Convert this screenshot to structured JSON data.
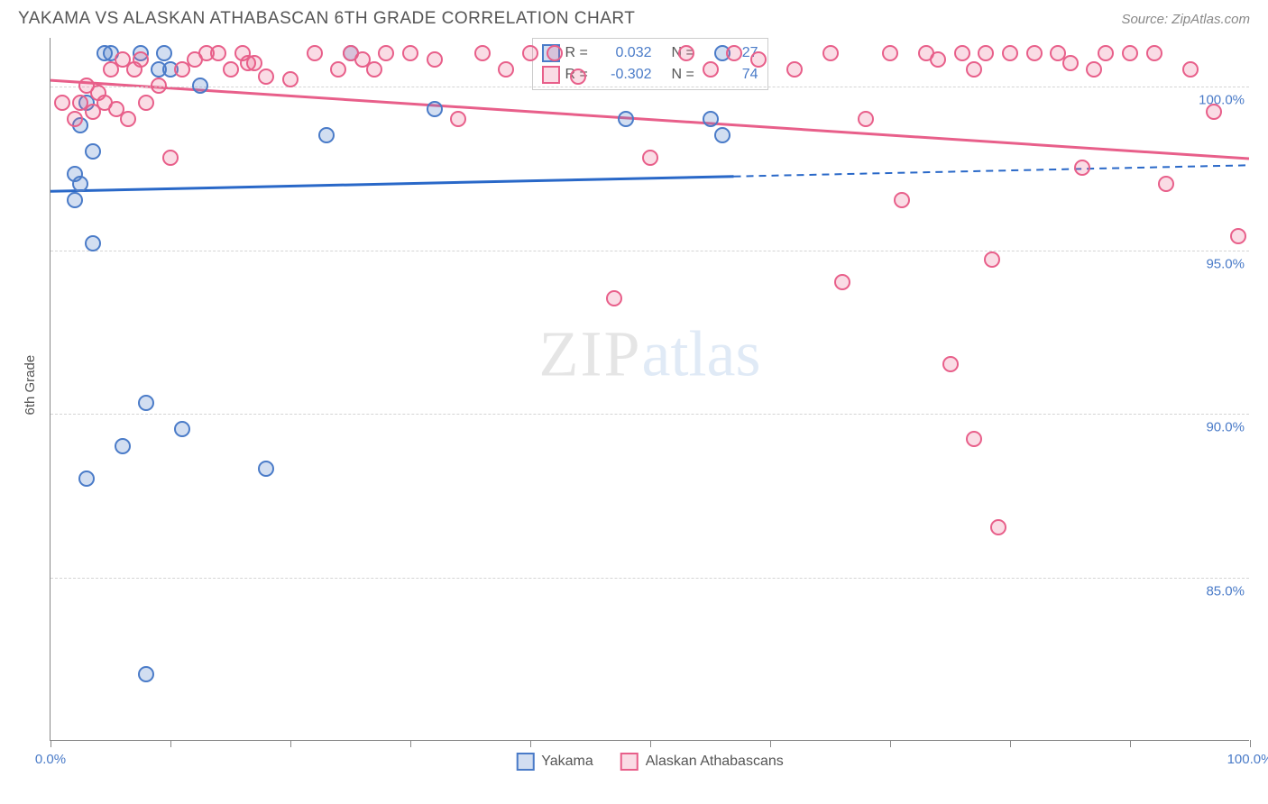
{
  "title": "YAKAMA VS ALASKAN ATHABASCAN 6TH GRADE CORRELATION CHART",
  "source": "Source: ZipAtlas.com",
  "ylabel": "6th Grade",
  "watermark_zip": "ZIP",
  "watermark_atlas": "atlas",
  "chart": {
    "type": "scatter",
    "xlim": [
      0,
      100
    ],
    "ylim": [
      80,
      101.5
    ],
    "xtick_positions": [
      0,
      10,
      20,
      30,
      40,
      50,
      60,
      70,
      80,
      90,
      100
    ],
    "xtick_labels": {
      "0": "0.0%",
      "100": "100.0%"
    },
    "xtick_label_color": "#4a7bc8",
    "ytick_positions": [
      85,
      90,
      95,
      100
    ],
    "ytick_labels": [
      "85.0%",
      "90.0%",
      "95.0%",
      "100.0%"
    ],
    "ytick_label_color": "#4a7bc8",
    "grid_color": "#d5d5d5",
    "background_color": "#ffffff",
    "marker_size": 18,
    "marker_border_width": 2,
    "marker_fill_opacity": 0.3,
    "series": [
      {
        "name": "Yakama",
        "color": "#4a7bc8",
        "fill": "rgba(74,123,200,0.25)",
        "r_value": "0.032",
        "n_value": "27",
        "trend": {
          "x1": 0,
          "y1": 96.8,
          "x2": 100,
          "y2": 97.6,
          "solid_until_x": 57,
          "line_color": "#2968c8",
          "line_width": 3
        },
        "points": [
          [
            2,
            97.3
          ],
          [
            2.5,
            97.0
          ],
          [
            2,
            96.5
          ],
          [
            2.5,
            98.8
          ],
          [
            3,
            99.5
          ],
          [
            3.5,
            98.0
          ],
          [
            4.5,
            101
          ],
          [
            5,
            101
          ],
          [
            7.5,
            101
          ],
          [
            9,
            100.5
          ],
          [
            9.5,
            101
          ],
          [
            10,
            100.5
          ],
          [
            3.5,
            95.2
          ],
          [
            3,
            88.0
          ],
          [
            6,
            89.0
          ],
          [
            8,
            90.3
          ],
          [
            8,
            82.0
          ],
          [
            11,
            89.5
          ],
          [
            12.5,
            100
          ],
          [
            18,
            88.3
          ],
          [
            23,
            98.5
          ],
          [
            25,
            101
          ],
          [
            32,
            99.3
          ],
          [
            48,
            99.0
          ],
          [
            55,
            99.0
          ],
          [
            56,
            98.5
          ],
          [
            56,
            101
          ]
        ]
      },
      {
        "name": "Alaskan Athabascans",
        "color": "#e85f8a",
        "fill": "rgba(232,95,138,0.22)",
        "r_value": "-0.302",
        "n_value": "74",
        "trend": {
          "x1": 0,
          "y1": 100.2,
          "x2": 100,
          "y2": 97.8,
          "solid_until_x": 100,
          "line_color": "#e85f8a",
          "line_width": 3
        },
        "points": [
          [
            1,
            99.5
          ],
          [
            2,
            99.0
          ],
          [
            2.5,
            99.5
          ],
          [
            3,
            100
          ],
          [
            3.5,
            99.2
          ],
          [
            4,
            99.8
          ],
          [
            4.5,
            99.5
          ],
          [
            5,
            100.5
          ],
          [
            5.5,
            99.3
          ],
          [
            6,
            100.8
          ],
          [
            6.5,
            99.0
          ],
          [
            7,
            100.5
          ],
          [
            7.5,
            100.8
          ],
          [
            8,
            99.5
          ],
          [
            9,
            100.0
          ],
          [
            10,
            97.8
          ],
          [
            11,
            100.5
          ],
          [
            12,
            100.8
          ],
          [
            13,
            101
          ],
          [
            14,
            101
          ],
          [
            15,
            100.5
          ],
          [
            16,
            101
          ],
          [
            16.5,
            100.7
          ],
          [
            17,
            100.7
          ],
          [
            18,
            100.3
          ],
          [
            20,
            100.2
          ],
          [
            22,
            101
          ],
          [
            24,
            100.5
          ],
          [
            25,
            101
          ],
          [
            26,
            100.8
          ],
          [
            27,
            100.5
          ],
          [
            28,
            101
          ],
          [
            30,
            101
          ],
          [
            32,
            100.8
          ],
          [
            34,
            99.0
          ],
          [
            36,
            101
          ],
          [
            38,
            100.5
          ],
          [
            40,
            101
          ],
          [
            42,
            101
          ],
          [
            44,
            100.3
          ],
          [
            47,
            93.5
          ],
          [
            50,
            97.8
          ],
          [
            53,
            101
          ],
          [
            55,
            100.5
          ],
          [
            57,
            101
          ],
          [
            59,
            100.8
          ],
          [
            62,
            100.5
          ],
          [
            65,
            101
          ],
          [
            66,
            94.0
          ],
          [
            68,
            99.0
          ],
          [
            70,
            101
          ],
          [
            71,
            96.5
          ],
          [
            73,
            101
          ],
          [
            74,
            100.8
          ],
          [
            75,
            91.5
          ],
          [
            76,
            101
          ],
          [
            77,
            100.5
          ],
          [
            77,
            89.2
          ],
          [
            78,
            101
          ],
          [
            78.5,
            94.7
          ],
          [
            79,
            86.5
          ],
          [
            80,
            101
          ],
          [
            82,
            101
          ],
          [
            84,
            101
          ],
          [
            85,
            100.7
          ],
          [
            86,
            97.5
          ],
          [
            87,
            100.5
          ],
          [
            88,
            101
          ],
          [
            90,
            101
          ],
          [
            92,
            101
          ],
          [
            93,
            97.0
          ],
          [
            95,
            100.5
          ],
          [
            97,
            99.2
          ],
          [
            99,
            95.4
          ]
        ]
      }
    ]
  },
  "stats_box": {
    "r_label": "R  =",
    "n_label": "N  ="
  },
  "legend": {
    "items": [
      "Yakama",
      "Alaskan Athabascans"
    ]
  }
}
